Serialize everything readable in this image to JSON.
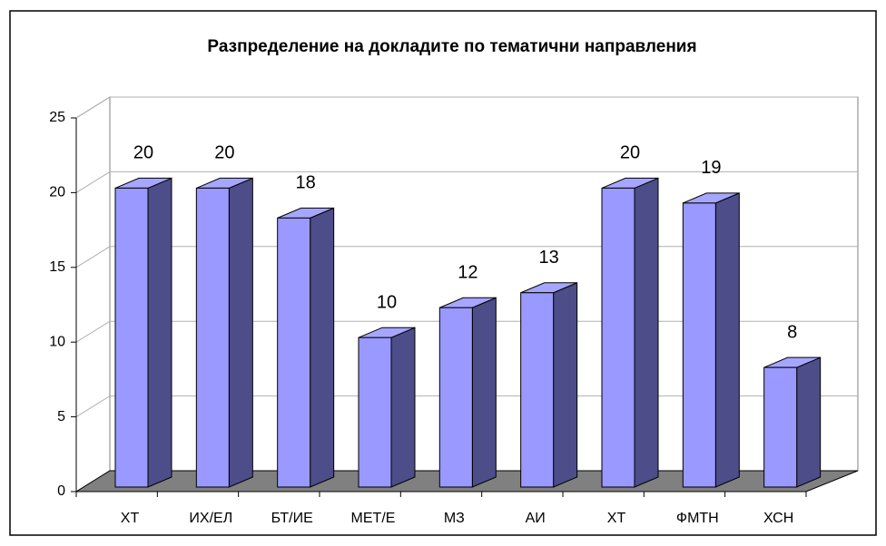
{
  "chart_data": {
    "type": "bar3d",
    "title": "Разпределение на докладите по тематични направления",
    "categories": [
      "ХТ",
      "ИХ/ЕЛ",
      "БТ/ИЕ",
      "МЕТ/Е",
      "МЗ",
      "АИ",
      "ХТ",
      "ФМТН",
      "ХСН"
    ],
    "values": [
      20,
      20,
      18,
      10,
      12,
      13,
      20,
      19,
      8
    ],
    "color": "#9999ff",
    "ylim": [
      0,
      25
    ],
    "yticks": [
      0,
      5,
      10,
      15,
      20,
      25
    ],
    "grid": true
  }
}
